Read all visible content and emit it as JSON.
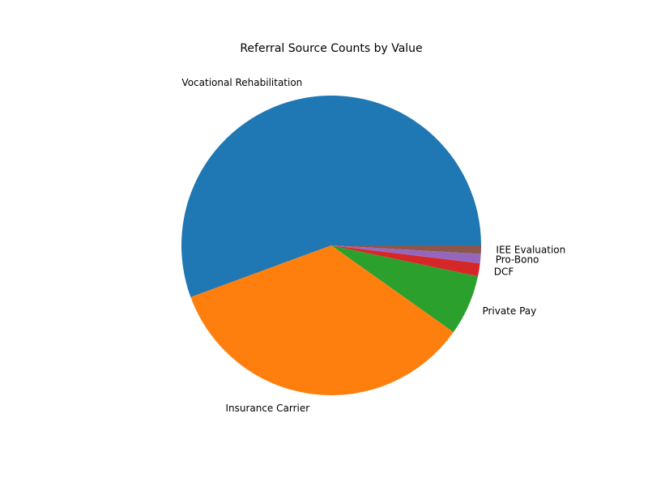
{
  "chart_data": {
    "type": "pie",
    "title": "Referral Source Counts by Value",
    "slices": [
      {
        "label": "Vocational Rehabilitation",
        "value": 55.5,
        "color": "#1f77b4"
      },
      {
        "label": "Insurance Carrier",
        "value": 34.5,
        "color": "#ff7f0e"
      },
      {
        "label": "Private Pay",
        "value": 6.5,
        "color": "#2ca02c"
      },
      {
        "label": "DCF",
        "value": 1.4,
        "color": "#d62728"
      },
      {
        "label": "Pro-Bono",
        "value": 1.0,
        "color": "#9467bd"
      },
      {
        "label": "IEE Evaluation",
        "value": 0.9,
        "color": "#8c564b"
      }
    ],
    "start_angle_deg": 0,
    "direction": "counterclockwise",
    "legend": "none"
  }
}
